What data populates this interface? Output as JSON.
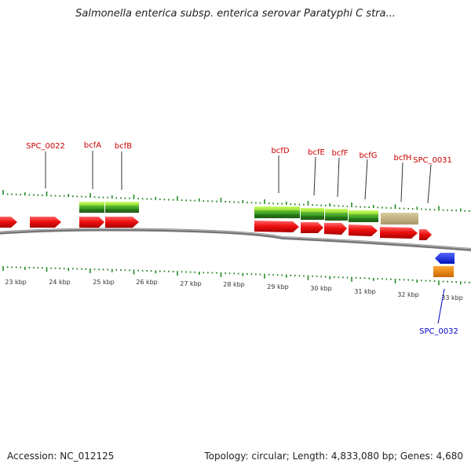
{
  "title": "Salmonella enterica subsp. enterica serovar Paratyphi C stra...",
  "footer": {
    "accession": "Accession: NC_012125",
    "summary": "Topology: circular; Length: 4,833,080 bp; Genes: 4,680"
  },
  "scale_labels": [
    "23 kbp",
    "24 kbp",
    "25 kbp",
    "26 kbp",
    "27 kbp",
    "28 kbp",
    "29 kbp",
    "30 kbp",
    "31 kbp",
    "32 kbp",
    "33 kbp"
  ],
  "gene_labels": [
    {
      "name": "SPC_0022",
      "color": "#cc0000",
      "strand": "forward"
    },
    {
      "name": "bcfA",
      "color": "#cc0000",
      "strand": "forward"
    },
    {
      "name": "bcfB",
      "color": "#cc0000",
      "strand": "forward"
    },
    {
      "name": "bcfD",
      "color": "#cc0000",
      "strand": "forward"
    },
    {
      "name": "bcfE",
      "color": "#cc0000",
      "strand": "forward"
    },
    {
      "name": "bcfF",
      "color": "#cc0000",
      "strand": "forward"
    },
    {
      "name": "bcfG",
      "color": "#cc0000",
      "strand": "forward"
    },
    {
      "name": "bcfH",
      "color": "#cc0000",
      "strand": "forward"
    },
    {
      "name": "SPC_0031",
      "color": "#cc0000",
      "strand": "forward"
    },
    {
      "name": "SPC_0032",
      "color": "#0000cc",
      "strand": "reverse"
    }
  ],
  "colors": {
    "forward_gene": "#ee1111",
    "reverse_gene": "#1122ee",
    "cog_green": "#44aa22",
    "cog_tan": "#b8a878",
    "orange": "#ee8800",
    "tick": "#228822",
    "backbone": "#888888"
  }
}
